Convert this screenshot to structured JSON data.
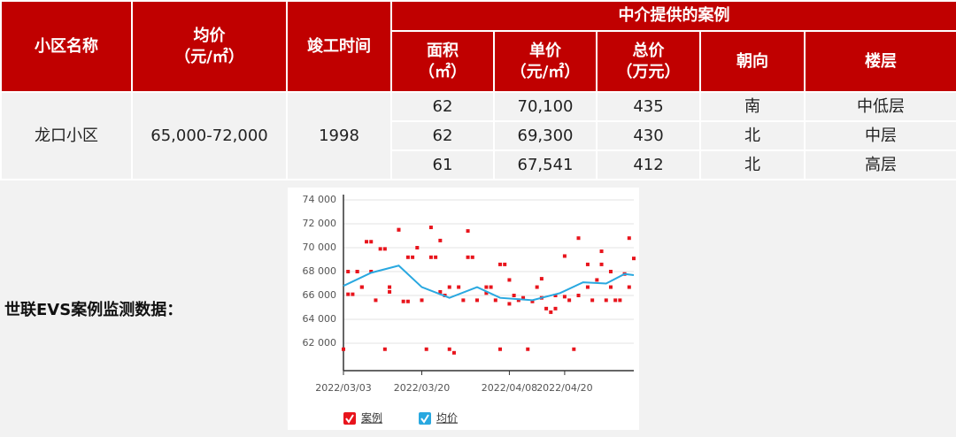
{
  "table": {
    "header": [
      "小区名称",
      "均价\n（元/㎡）",
      "竣工时间",
      "中介提供的案例"
    ],
    "subheader": [
      "面积\n（㎡）",
      "单价\n（元/㎡）",
      "总价\n（万元）",
      "朝向",
      "楼层"
    ],
    "name": "龙口小区",
    "price": "65,000-72,000",
    "year": "1998",
    "rows": [
      [
        "62",
        "70,100",
        "435",
        "南",
        "中低层"
      ],
      [
        "62",
        "69,300",
        "430",
        "北",
        "中层"
      ],
      [
        "61",
        "67,541",
        "412",
        "北",
        "高层"
      ]
    ]
  },
  "chart_label": "世联EVS案例监测数据：",
  "chart_data": {
    "type": "combo",
    "xlim": [
      "2022/03/03",
      "2022/05/05"
    ],
    "xticks": [
      "2022/03/03",
      "2022/03/20",
      "2022/04/08",
      "2022/04/20"
    ],
    "ylim": [
      60000,
      74000
    ],
    "yticks": [
      {
        "value": 62000,
        "label": "62 000"
      },
      {
        "value": 64000,
        "label": "64 000"
      },
      {
        "value": 66000,
        "label": "66 000"
      },
      {
        "value": 68000,
        "label": "68 000"
      },
      {
        "value": 70000,
        "label": "70 000"
      },
      {
        "value": 72000,
        "label": "72 000"
      },
      {
        "value": 74000,
        "label": "74 000"
      }
    ],
    "grid": true,
    "series": [
      {
        "name": "案例",
        "type": "scatter",
        "color": "#e8141c",
        "x": [
          "2022/03/03",
          "2022/03/04",
          "2022/03/05",
          "2022/03/04",
          "2022/03/06",
          "2022/03/06",
          "2022/03/07",
          "2022/03/07",
          "2022/03/08",
          "2022/03/09",
          "2022/03/09",
          "2022/03/10",
          "2022/03/11",
          "2022/03/12",
          "2022/03/12",
          "2022/03/13",
          "2022/03/13",
          "2022/03/15",
          "2022/03/15",
          "2022/03/16",
          "2022/03/17",
          "2022/03/17",
          "2022/03/18",
          "2022/03/19",
          "2022/03/20",
          "2022/03/21",
          "2022/03/22",
          "2022/03/22",
          "2022/03/23",
          "2022/03/24",
          "2022/03/24",
          "2022/03/25",
          "2022/03/26",
          "2022/03/26",
          "2022/03/27",
          "2022/03/28",
          "2022/03/29",
          "2022/03/30",
          "2022/03/30",
          "2022/03/31",
          "2022/04/01",
          "2022/04/03",
          "2022/04/03",
          "2022/04/04",
          "2022/04/05",
          "2022/04/06",
          "2022/04/06",
          "2022/04/07",
          "2022/04/08",
          "2022/04/08",
          "2022/04/09",
          "2022/04/10",
          "2022/04/11",
          "2022/04/12",
          "2022/04/13",
          "2022/04/14",
          "2022/04/15",
          "2022/04/15",
          "2022/04/16",
          "2022/04/17",
          "2022/04/18",
          "2022/04/18",
          "2022/04/20",
          "2022/04/20",
          "2022/04/21",
          "2022/04/22",
          "2022/04/23",
          "2022/04/23",
          "2022/04/25",
          "2022/04/25",
          "2022/04/26",
          "2022/04/27",
          "2022/04/28",
          "2022/04/28",
          "2022/04/29",
          "2022/04/30",
          "2022/04/30",
          "2022/05/01",
          "2022/05/02",
          "2022/05/03",
          "2022/05/04",
          "2022/05/04",
          "2022/05/05"
        ],
        "values": [
          61500,
          66100,
          66100,
          68000,
          68000,
          68000,
          66700,
          66700,
          70500,
          70500,
          68000,
          65600,
          69900,
          69900,
          61500,
          66700,
          66300,
          71500,
          71500,
          65500,
          65500,
          69200,
          69200,
          70000,
          65600,
          61500,
          71700,
          69200,
          69200,
          70600,
          66300,
          66000,
          66700,
          61500,
          61200,
          66700,
          65600,
          71400,
          69200,
          69200,
          65600,
          66200,
          66700,
          66700,
          65600,
          61500,
          68600,
          68600,
          67300,
          65300,
          66000,
          65600,
          65800,
          61500,
          65500,
          66700,
          67400,
          65800,
          64900,
          64600,
          64900,
          66000,
          69300,
          65900,
          65600,
          61500,
          70800,
          66000,
          68600,
          66700,
          65600,
          67300,
          68600,
          69700,
          65600,
          68000,
          66700,
          65600,
          65600,
          67800,
          70800,
          66700,
          69100
        ]
      },
      {
        "name": "均价",
        "type": "line",
        "color": "#29a8e0",
        "x": [
          "2022/03/03",
          "2022/03/09",
          "2022/03/15",
          "2022/03/20",
          "2022/03/26",
          "2022/04/01",
          "2022/04/06",
          "2022/04/13",
          "2022/04/19",
          "2022/04/24",
          "2022/04/29",
          "2022/05/03",
          "2022/05/05"
        ],
        "values": [
          66800,
          67900,
          68500,
          66700,
          65800,
          66700,
          65800,
          65600,
          66200,
          67100,
          67000,
          67800,
          67700
        ]
      }
    ]
  }
}
